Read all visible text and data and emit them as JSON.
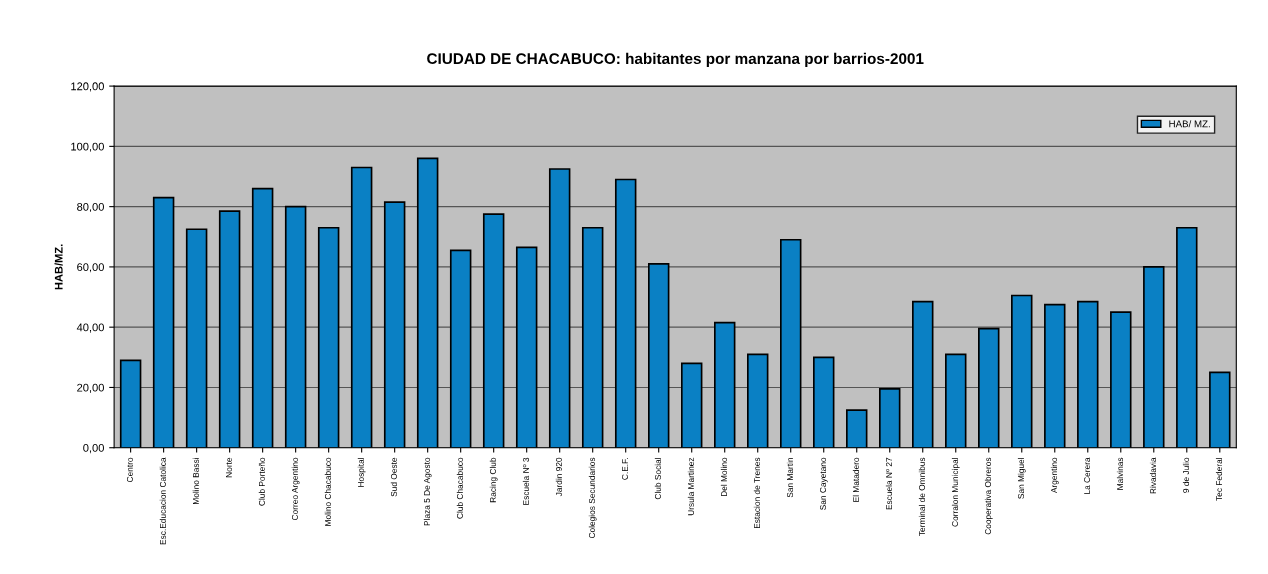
{
  "chart_data": {
    "type": "bar",
    "title": "CIUDAD DE CHACABUCO: habitantes por manzana por barrios-2001",
    "ylabel": "HAB/MZ.",
    "categories": [
      "Centro",
      "Esc.Educacion Catolica",
      "Molino Bassi",
      "Norte",
      "Club Porteño",
      "Correo Argentino",
      "Molino Chacabuco",
      "Hospital",
      "Sud Oeste",
      "Plaza 5 De Agosto",
      "Club Chacabuco",
      "Racing Club",
      "Escuela Nº 3",
      "Jardin 920",
      "Colegios Secundarios",
      "C.E.F.",
      "Club Social",
      "Ursula Martinez",
      "Del Molino",
      "Estacion de Trenes",
      "San Martin",
      "San Cayetano",
      "El Matadero",
      "Escuela Nº 27",
      "Terminal de Omnibus",
      "Corralon Municipal",
      "Cooperativa Obreros",
      "San Miguel",
      "Argentino",
      "La Cerera",
      "Malvinas",
      "Rivadavia",
      "9 de Julio",
      "Tec Federal"
    ],
    "series": [
      {
        "name": "HAB/ MZ.",
        "color": "#0a80c4",
        "values": [
          29,
          83,
          72.5,
          78.5,
          86,
          80,
          73,
          93,
          81.5,
          96,
          65.5,
          77.5,
          66.5,
          92.5,
          73,
          89,
          61,
          28,
          41.5,
          31,
          69,
          30,
          12.5,
          19.5,
          48.5,
          31,
          39.5,
          50.5,
          47.5,
          48.5,
          45,
          60,
          73,
          25
        ]
      }
    ],
    "ylim": [
      0,
      120
    ],
    "yticks": [
      {
        "value": 0,
        "label": "0,00"
      },
      {
        "value": 20,
        "label": "20,00"
      },
      {
        "value": 40,
        "label": "40,00"
      },
      {
        "value": 60,
        "label": "60,00"
      },
      {
        "value": 80,
        "label": "80,00"
      },
      {
        "value": 100,
        "label": "100,00"
      },
      {
        "value": 120,
        "label": "120,00"
      }
    ],
    "grid": "y",
    "legend": "top right"
  }
}
